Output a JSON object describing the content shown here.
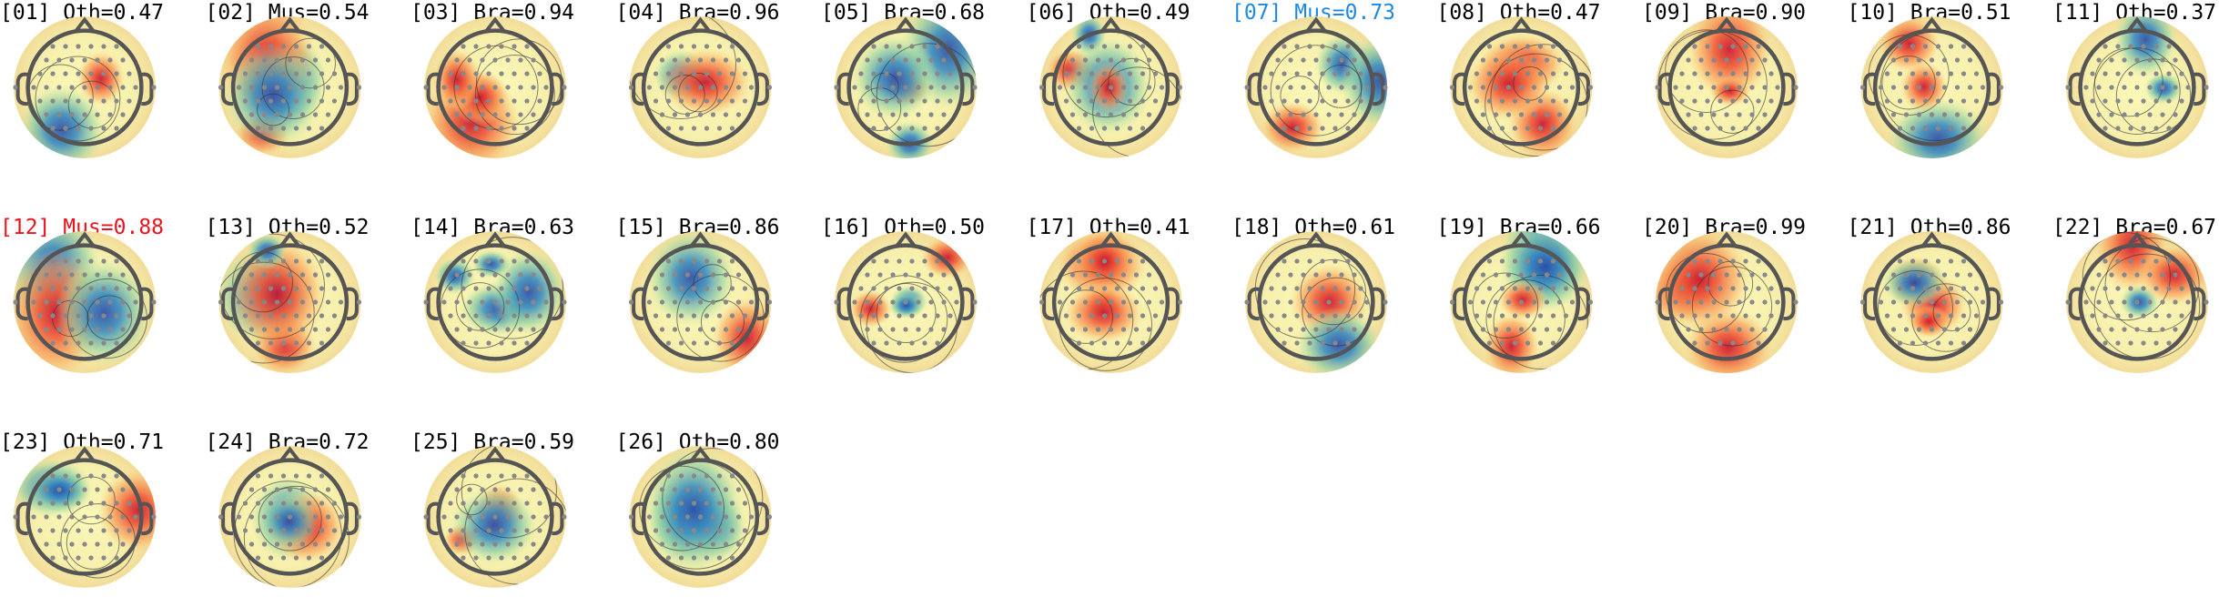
{
  "components": [
    {
      "label": "[01] Oth=0.47",
      "color": "#000000"
    },
    {
      "label": "[02] Mus=0.54",
      "color": "#000000"
    },
    {
      "label": "[03] Bra=0.94",
      "color": "#000000"
    },
    {
      "label": "[04] Bra=0.96",
      "color": "#000000"
    },
    {
      "label": "[05] Bra=0.68",
      "color": "#000000"
    },
    {
      "label": "[06] Oth=0.49",
      "color": "#000000"
    },
    {
      "label": "[07] Mus=0.73",
      "color": "#1e88e5"
    },
    {
      "label": "[08] Oth=0.47",
      "color": "#000000"
    },
    {
      "label": "[09] Bra=0.90",
      "color": "#000000"
    },
    {
      "label": "[10] Bra=0.51",
      "color": "#000000"
    },
    {
      "label": "[11] Oth=0.37",
      "color": "#000000"
    },
    {
      "label": "[12] Mus=0.88",
      "color": "#e8141e"
    },
    {
      "label": "[13] Oth=0.52",
      "color": "#000000"
    },
    {
      "label": "[14] Bra=0.63",
      "color": "#000000"
    },
    {
      "label": "[15] Bra=0.86",
      "color": "#000000"
    },
    {
      "label": "[16] Oth=0.50",
      "color": "#000000"
    },
    {
      "label": "[17] Oth=0.41",
      "color": "#000000"
    },
    {
      "label": "[18] Oth=0.61",
      "color": "#000000"
    },
    {
      "label": "[19] Bra=0.66",
      "color": "#000000"
    },
    {
      "label": "[20] Bra=0.99",
      "color": "#000000"
    },
    {
      "label": "[21] Oth=0.86",
      "color": "#000000"
    },
    {
      "label": "[22] Bra=0.67",
      "color": "#000000"
    },
    {
      "label": "[23] Oth=0.71",
      "color": "#000000"
    },
    {
      "label": "[24] Bra=0.72",
      "color": "#000000"
    },
    {
      "label": "[25] Bra=0.59",
      "color": "#000000"
    },
    {
      "label": "[26] Oth=0.80",
      "color": "#000000"
    }
  ]
}
